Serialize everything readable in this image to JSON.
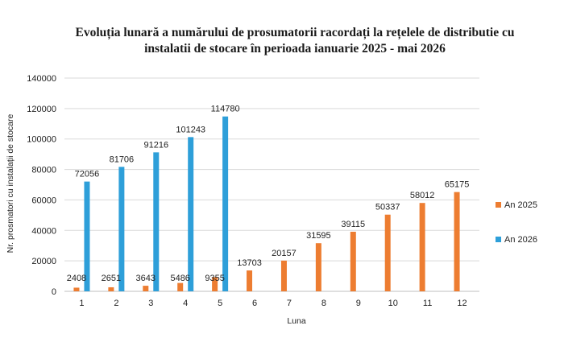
{
  "chart_data": {
    "type": "bar",
    "title_lines": [
      "Evoluția lunară a numărului de prosumatorii racordați la rețelele de distributie cu",
      "instalatii de stocare în perioada ianuarie 2025 - mai 2026"
    ],
    "xlabel": "Luna",
    "ylabel": "Nr. prosmatori cu instalații de stocare",
    "categories": [
      "1",
      "2",
      "3",
      "4",
      "5",
      "6",
      "7",
      "8",
      "9",
      "10",
      "11",
      "12"
    ],
    "ylim": [
      0,
      140000
    ],
    "yticks": [
      "0",
      "20000",
      "40000",
      "60000",
      "80000",
      "100000",
      "120000",
      "140000"
    ],
    "grid": true,
    "legend_position": "right",
    "series": [
      {
        "name": "An 2025",
        "color": "#ED7D31",
        "values": [
          2408,
          2651,
          3643,
          5486,
          9355,
          13703,
          20157,
          31595,
          39115,
          50337,
          58012,
          65175
        ],
        "labels": [
          "2408",
          "2651",
          "3643",
          "5486",
          "9355",
          "13703",
          "20157",
          "31595",
          "39115",
          "50337",
          "58012",
          "65175"
        ]
      },
      {
        "name": "An 2026",
        "color": "#2E9FD9",
        "values": [
          72056,
          81706,
          91216,
          101243,
          114780,
          null,
          null,
          null,
          null,
          null,
          null,
          null
        ],
        "labels": [
          "72056",
          "81706",
          "91216",
          "101243",
          "114780",
          "",
          "",
          "",
          "",
          "",
          "",
          ""
        ]
      }
    ]
  }
}
